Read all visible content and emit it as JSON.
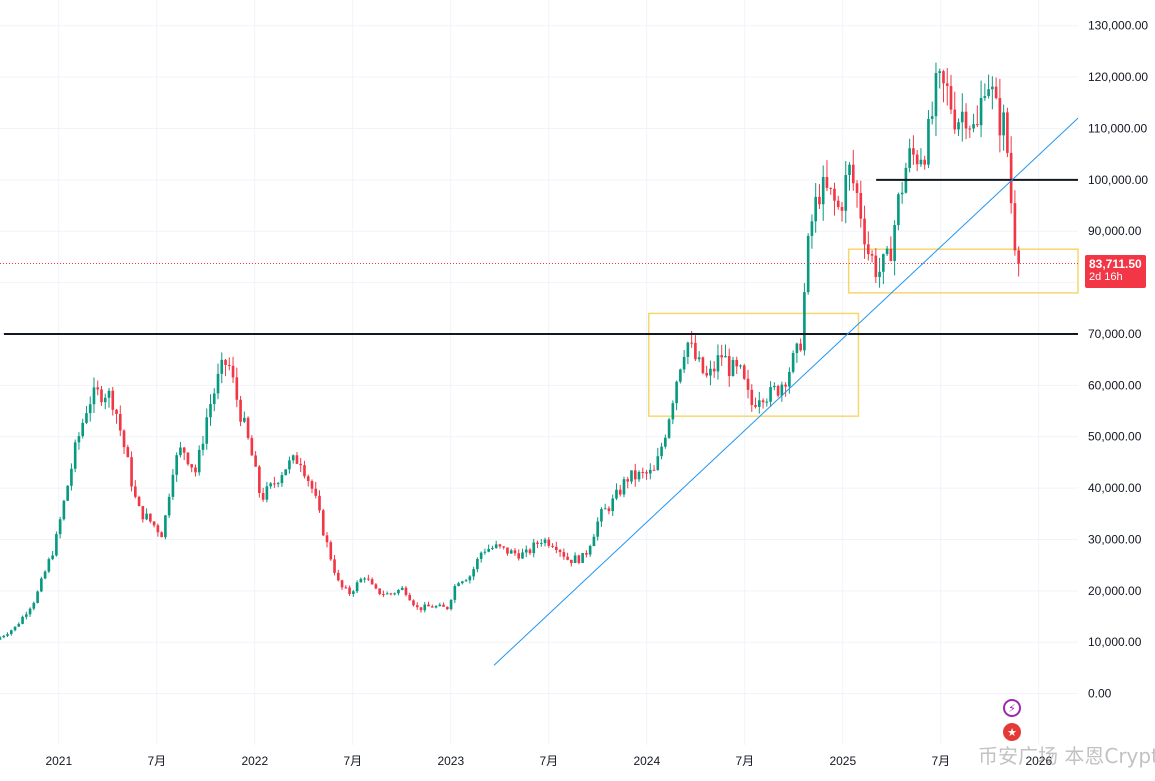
{
  "chart_data": {
    "type": "candlestick",
    "symbol_tag": {
      "price": "83,711.50",
      "countdown": "2d 16h",
      "color": "#f23645"
    },
    "y_axis": {
      "ticks": [
        "130,000.00",
        "120,000.00",
        "110,000.00",
        "100,000.00",
        "90,000.00",
        "80,000.00",
        "70,000.00",
        "60,000.00",
        "50,000.00",
        "40,000.00",
        "30,000.00",
        "20,000.00",
        "10,000.00",
        "0.00"
      ],
      "ylim": [
        -10000,
        135000
      ]
    },
    "x_axis": {
      "ticks": [
        {
          "label": "2021",
          "t": 2021.0
        },
        {
          "label": "7月",
          "t": 2021.5
        },
        {
          "label": "2022",
          "t": 2022.0
        },
        {
          "label": "7月",
          "t": 2022.5
        },
        {
          "label": "2023",
          "t": 2023.0
        },
        {
          "label": "7月",
          "t": 2023.5
        },
        {
          "label": "2024",
          "t": 2024.0
        },
        {
          "label": "7月",
          "t": 2024.5
        },
        {
          "label": "2025",
          "t": 2025.0
        },
        {
          "label": "7月",
          "t": 2025.5
        },
        {
          "label": "2026",
          "t": 2026.0
        }
      ],
      "xlim": [
        2020.7,
        2026.2
      ]
    },
    "colors": {
      "up": "#089981",
      "down": "#f23645",
      "trendline": "#2196f3",
      "box": "#f5d76e",
      "level": "#131722"
    },
    "price_path": [
      [
        2020.7,
        10500
      ],
      [
        2020.8,
        13000
      ],
      [
        2020.9,
        18500
      ],
      [
        2021.0,
        29000
      ],
      [
        2021.05,
        38000
      ],
      [
        2021.1,
        47000
      ],
      [
        2021.17,
        57000
      ],
      [
        2021.25,
        59000
      ],
      [
        2021.3,
        57000
      ],
      [
        2021.37,
        45000
      ],
      [
        2021.42,
        36000
      ],
      [
        2021.5,
        33000
      ],
      [
        2021.55,
        31000
      ],
      [
        2021.6,
        44000
      ],
      [
        2021.65,
        48000
      ],
      [
        2021.72,
        43000
      ],
      [
        2021.78,
        55000
      ],
      [
        2021.84,
        62000
      ],
      [
        2021.88,
        65000
      ],
      [
        2021.93,
        57000
      ],
      [
        2022.0,
        47000
      ],
      [
        2022.05,
        38000
      ],
      [
        2022.1,
        40000
      ],
      [
        2022.17,
        44000
      ],
      [
        2022.25,
        46000
      ],
      [
        2022.32,
        39000
      ],
      [
        2022.38,
        30000
      ],
      [
        2022.45,
        21000
      ],
      [
        2022.5,
        19500
      ],
      [
        2022.58,
        23000
      ],
      [
        2022.63,
        20000
      ],
      [
        2022.7,
        19300
      ],
      [
        2022.78,
        20500
      ],
      [
        2022.85,
        16500
      ],
      [
        2022.92,
        17000
      ],
      [
        2023.0,
        16600
      ],
      [
        2023.05,
        22000
      ],
      [
        2023.12,
        23000
      ],
      [
        2023.18,
        28000
      ],
      [
        2023.25,
        28500
      ],
      [
        2023.32,
        27500
      ],
      [
        2023.4,
        27000
      ],
      [
        2023.48,
        30000
      ],
      [
        2023.55,
        29300
      ],
      [
        2023.62,
        26000
      ],
      [
        2023.7,
        26500
      ],
      [
        2023.78,
        34500
      ],
      [
        2023.85,
        37500
      ],
      [
        2023.92,
        42000
      ],
      [
        2024.0,
        42500
      ],
      [
        2024.06,
        43000
      ],
      [
        2024.12,
        52000
      ],
      [
        2024.18,
        63000
      ],
      [
        2024.22,
        69000
      ],
      [
        2024.28,
        64000
      ],
      [
        2024.33,
        61000
      ],
      [
        2024.4,
        66000
      ],
      [
        2024.45,
        63000
      ],
      [
        2024.5,
        62000
      ],
      [
        2024.55,
        56000
      ],
      [
        2024.6,
        59000
      ],
      [
        2024.65,
        58000
      ],
      [
        2024.7,
        60000
      ],
      [
        2024.75,
        63500
      ],
      [
        2024.8,
        67000
      ],
      [
        2024.85,
        90000
      ],
      [
        2024.9,
        98000
      ],
      [
        2024.95,
        97000
      ],
      [
        2025.0,
        94000
      ],
      [
        2025.05,
        102000
      ],
      [
        2025.1,
        96000
      ],
      [
        2025.15,
        86000
      ],
      [
        2025.2,
        82000
      ],
      [
        2025.25,
        84000
      ],
      [
        2025.3,
        95000
      ],
      [
        2025.35,
        104000
      ],
      [
        2025.4,
        105000
      ],
      [
        2025.45,
        107000
      ],
      [
        2025.5,
        118000
      ],
      [
        2025.55,
        117000
      ],
      [
        2025.6,
        112000
      ],
      [
        2025.65,
        114000
      ],
      [
        2025.7,
        108000
      ],
      [
        2025.75,
        122000
      ],
      [
        2025.8,
        113000
      ],
      [
        2025.85,
        110000
      ],
      [
        2025.88,
        95000
      ],
      [
        2025.91,
        83711.5
      ]
    ],
    "annotations": {
      "horizontal_levels": [
        {
          "value": 70000,
          "x_from": 2020.72,
          "x_to": 2026.2
        },
        {
          "value": 100000,
          "x_from": 2025.17,
          "x_to": 2026.2
        }
      ],
      "trendline": {
        "from": [
          2023.22,
          5500
        ],
        "to": [
          2026.2,
          112000
        ]
      },
      "boxes": [
        {
          "x_from": 2024.01,
          "x_to": 2025.08,
          "y_from": 54000,
          "y_to": 74000
        },
        {
          "x_from": 2025.03,
          "x_to": 2026.2,
          "y_from": 78000,
          "y_to": 86500
        }
      ],
      "current_price_line": 83711.5
    }
  },
  "watermark": "币安广场  本恩Crypto",
  "icons": [
    "lightning-icon",
    "us-flag-icon"
  ]
}
